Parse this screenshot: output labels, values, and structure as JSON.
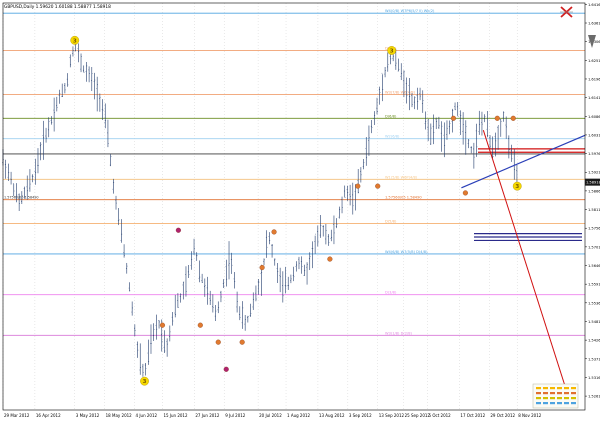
{
  "title": "GBPUSD,Daily  1.59620 1.60188 1.58877 1.58918",
  "colors": {
    "background": "#ffffff",
    "candle": "#1f3a6b",
    "frame": "#000000",
    "grid": "#c8c8c8",
    "price_box": "#1a1a1a",
    "price_box_text": "#ffffff"
  },
  "chart_data": {
    "type": "candlestick",
    "symbol": "GBPUSD",
    "timeframe": "Daily",
    "ylim": [
      1.522,
      1.642
    ],
    "x_range_days": [
      0,
      237
    ],
    "x_ticks": [
      {
        "day": 0,
        "label": "29 Mar 2012"
      },
      {
        "day": 16,
        "label": "16 Apr 2012"
      },
      {
        "day": 36,
        "label": "3 May 2012"
      },
      {
        "day": 51,
        "label": "18 May 2012"
      },
      {
        "day": 66,
        "label": "4 Jun 2012"
      },
      {
        "day": 80,
        "label": "15 Jun 2012"
      },
      {
        "day": 96,
        "label": "27 Jun 2012"
      },
      {
        "day": 111,
        "label": "9 Jul 2012"
      },
      {
        "day": 128,
        "label": "20 Jul 2012"
      },
      {
        "day": 142,
        "label": "1 Aug 2012"
      },
      {
        "day": 158,
        "label": "13 Aug 2012"
      },
      {
        "day": 173,
        "label": "3 Sep 2012"
      },
      {
        "day": 188,
        "label": "13 Sep 2012"
      },
      {
        "day": 201,
        "label": "25 Sep 2012"
      },
      {
        "day": 213,
        "label": "5 Oct 2012"
      },
      {
        "day": 229,
        "label": "17 Oct 2012"
      },
      {
        "day": 244,
        "label": "29 Oct 2012"
      },
      {
        "day": 258,
        "label": "8 Nov 2012"
      }
    ],
    "y_ticks": [
      "1.64160",
      "1.63610",
      "1.63060",
      "1.62510",
      "1.61960",
      "1.61410",
      "1.60860",
      "1.60310",
      "1.59760",
      "1.59210",
      "1.58660",
      "1.58110",
      "1.57560",
      "1.57010",
      "1.56460",
      "1.55910",
      "1.55360",
      "1.54810",
      "1.54260",
      "1.53710",
      "1.53160",
      "1.52610",
      "1.52060"
    ],
    "price_path": [
      [
        0,
        1.596
      ],
      [
        4,
        1.59
      ],
      [
        8,
        1.583
      ],
      [
        12,
        1.587
      ],
      [
        16,
        1.592
      ],
      [
        20,
        1.601
      ],
      [
        24,
        1.607
      ],
      [
        28,
        1.614
      ],
      [
        32,
        1.618
      ],
      [
        34,
        1.626
      ],
      [
        36,
        1.63
      ],
      [
        40,
        1.623
      ],
      [
        44,
        1.62
      ],
      [
        48,
        1.615
      ],
      [
        52,
        1.606
      ],
      [
        56,
        1.585
      ],
      [
        60,
        1.572
      ],
      [
        64,
        1.556
      ],
      [
        66,
        1.546
      ],
      [
        68,
        1.538
      ],
      [
        71,
        1.532
      ],
      [
        74,
        1.542
      ],
      [
        78,
        1.548
      ],
      [
        82,
        1.54
      ],
      [
        86,
        1.552
      ],
      [
        90,
        1.556
      ],
      [
        94,
        1.564
      ],
      [
        96,
        1.571
      ],
      [
        99,
        1.562
      ],
      [
        103,
        1.556
      ],
      [
        107,
        1.55
      ],
      [
        111,
        1.56
      ],
      [
        114,
        1.568
      ],
      [
        118,
        1.552
      ],
      [
        122,
        1.547
      ],
      [
        126,
        1.555
      ],
      [
        130,
        1.562
      ],
      [
        133,
        1.574
      ],
      [
        137,
        1.564
      ],
      [
        140,
        1.558
      ],
      [
        144,
        1.56
      ],
      [
        148,
        1.566
      ],
      [
        152,
        1.562
      ],
      [
        156,
        1.57
      ],
      [
        160,
        1.576
      ],
      [
        164,
        1.572
      ],
      [
        168,
        1.578
      ],
      [
        172,
        1.587
      ],
      [
        176,
        1.584
      ],
      [
        180,
        1.592
      ],
      [
        184,
        1.603
      ],
      [
        188,
        1.612
      ],
      [
        192,
        1.623
      ],
      [
        195,
        1.627
      ],
      [
        198,
        1.624
      ],
      [
        202,
        1.618
      ],
      [
        206,
        1.612
      ],
      [
        209,
        1.616
      ],
      [
        212,
        1.608
      ],
      [
        215,
        1.602
      ],
      [
        218,
        1.608
      ],
      [
        221,
        1.601
      ],
      [
        224,
        1.605
      ],
      [
        227,
        1.612
      ],
      [
        230,
        1.607
      ],
      [
        233,
        1.602
      ],
      [
        236,
        1.597
      ],
      [
        239,
        1.606
      ],
      [
        242,
        1.608
      ],
      [
        245,
        1.599
      ],
      [
        248,
        1.602
      ],
      [
        251,
        1.609
      ],
      [
        254,
        1.6
      ],
      [
        256,
        1.595
      ],
      [
        258,
        1.59
      ]
    ],
    "horizontal_levels": [
      {
        "price": 1.639,
        "color": "#4da3e0",
        "label": "W4(0/8)  W7P6(5/7 ll) Wk(2)"
      },
      {
        "price": 1.628,
        "color": "#f0a070",
        "label": "D(7/8)"
      },
      {
        "price": 1.615,
        "color": "#f0a070",
        "label": "W3(7/8)  W6(4/8)"
      },
      {
        "price": 1.608,
        "color": "#6b8e23",
        "label": "D(6/8)"
      },
      {
        "price": 1.602,
        "color": "#9fd0f0",
        "label": "W2(6/8)"
      },
      {
        "price": 1.5975,
        "color": "#3a3a3a",
        "label": ""
      },
      {
        "price": 1.59,
        "color": "#f5c78c",
        "label": "W1(5/8)  W6P(4/8)"
      },
      {
        "price": 1.584,
        "color": "#e07030",
        "label": "1.57560/05  1.58490"
      },
      {
        "price": 1.577,
        "color": "#f5b070",
        "label": "D(5/8)"
      },
      {
        "price": 1.568,
        "color": "#4da3e0",
        "label": "W4(6/8)  W7(5/8)  D(4/8)"
      },
      {
        "price": 1.556,
        "color": "#ee82ee",
        "label": "D(3/8)"
      },
      {
        "price": 1.544,
        "color": "#dd88dd",
        "label": "W3(1/8)  D(2/8)"
      }
    ],
    "red_zone_levels": [
      1.599,
      1.598
    ],
    "blue_target_levels": [
      1.574,
      1.573,
      1.572
    ],
    "trendline_blue": [
      [
        230,
        1.5875
      ],
      [
        292,
        1.603
      ]
    ],
    "trendline_red": [
      [
        241,
        1.6045
      ],
      [
        285,
        1.5235
      ]
    ],
    "zigzag_labels": [
      {
        "day": 36,
        "price": 1.631,
        "text": "3",
        "color": "#f5d800"
      },
      {
        "day": 71,
        "price": 1.5305,
        "text": "3",
        "color": "#f5d800"
      },
      {
        "day": 195,
        "price": 1.628,
        "text": "3",
        "color": "#f5d800"
      },
      {
        "day": 258,
        "price": 1.588,
        "text": "3",
        "color": "#f5d800"
      }
    ],
    "pivot_dots": [
      {
        "day": 88,
        "price": 1.575,
        "color": "#b0226f"
      },
      {
        "day": 80,
        "price": 1.547,
        "color": "#e07a30"
      },
      {
        "day": 99,
        "price": 1.547,
        "color": "#e07a30"
      },
      {
        "day": 108,
        "price": 1.542,
        "color": "#e07a30"
      },
      {
        "day": 112,
        "price": 1.534,
        "color": "#b0226f"
      },
      {
        "day": 120,
        "price": 1.542,
        "color": "#e07a30"
      },
      {
        "day": 130,
        "price": 1.564,
        "color": "#e07a30"
      },
      {
        "day": 136,
        "price": 1.5745,
        "color": "#e07a30"
      },
      {
        "day": 164,
        "price": 1.5665,
        "color": "#e07a30"
      },
      {
        "day": 178,
        "price": 1.588,
        "color": "#e07a30"
      },
      {
        "day": 188,
        "price": 1.588,
        "color": "#e07a30"
      },
      {
        "day": 232,
        "price": 1.586,
        "color": "#e07a30"
      },
      {
        "day": 248,
        "price": 1.608,
        "color": "#e07a30"
      },
      {
        "day": 256,
        "price": 1.608,
        "color": "#e07a30"
      },
      {
        "day": 226,
        "price": 1.608,
        "color": "#e07a30"
      }
    ],
    "current_price": "1.58918",
    "current_price_label": "1.57560/05  1.58490",
    "legend": {
      "position": "bottom-right",
      "rows": [
        {
          "color": "#f5b800",
          "label": ""
        },
        {
          "color": "#e07030",
          "label": ""
        },
        {
          "color": "#d4c000",
          "label": ""
        },
        {
          "color": "#4da3e0",
          "label": ""
        }
      ]
    }
  }
}
